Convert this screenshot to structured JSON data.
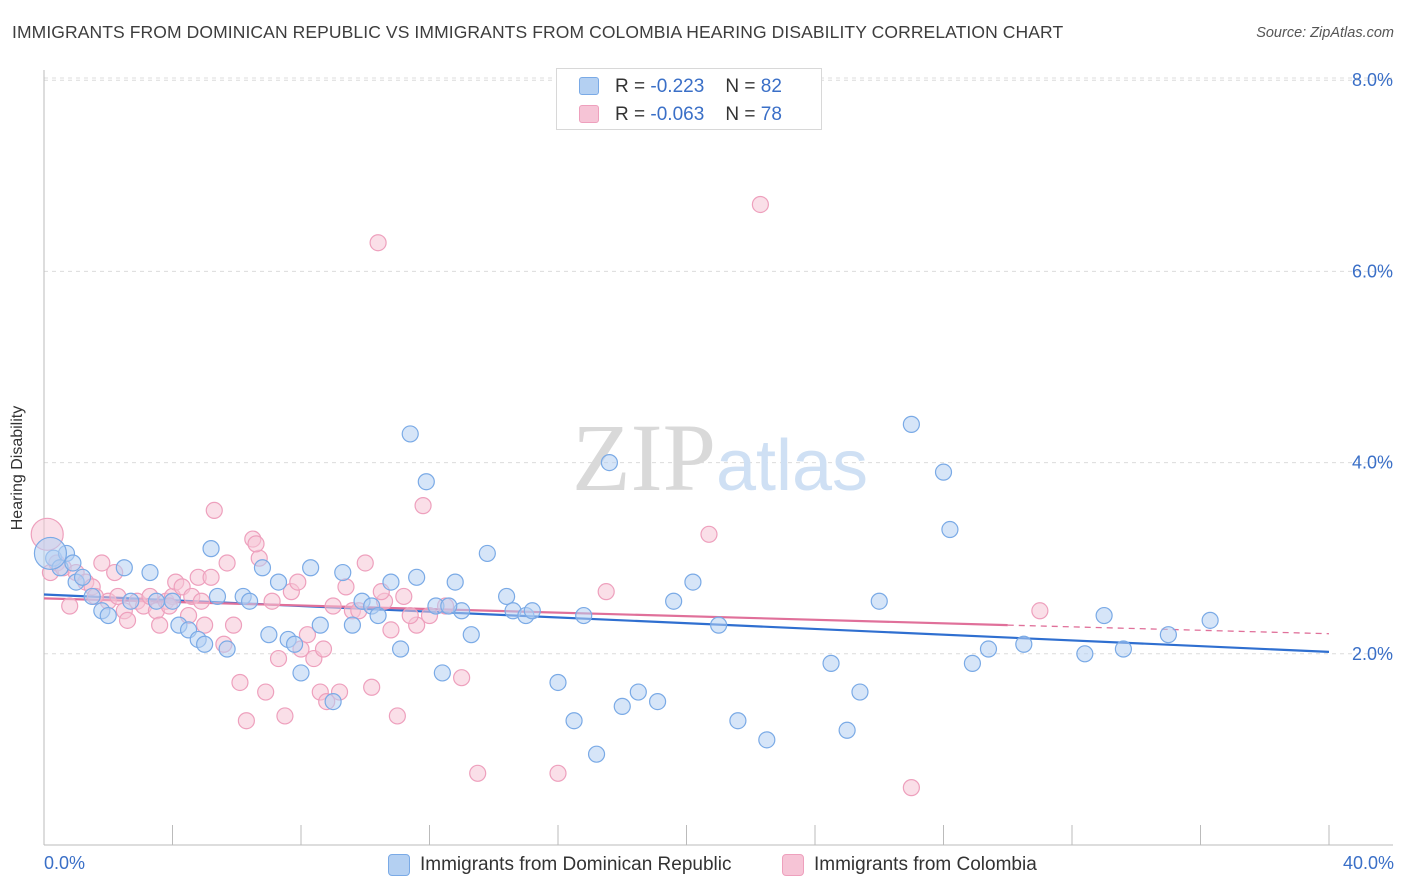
{
  "chart_data": {
    "type": "scatter",
    "title": "IMMIGRANTS FROM DOMINICAN REPUBLIC VS IMMIGRANTS FROM COLOMBIA HEARING DISABILITY CORRELATION CHART",
    "source": "Source: ZipAtlas.com",
    "xlabel": "",
    "ylabel": "Hearing Disability",
    "xlim": [
      0,
      40
    ],
    "ylim": [
      0,
      8.2
    ],
    "x_tick_labels": {
      "left": "0.0%",
      "right": "40.0%"
    },
    "y_ticks": [
      {
        "value": 2,
        "label": "2.0%"
      },
      {
        "value": 4,
        "label": "4.0%"
      },
      {
        "value": 6,
        "label": "6.0%"
      },
      {
        "value": 8,
        "label": "8.0%"
      }
    ],
    "grid": true,
    "legend_position": "top-center",
    "watermark": "ZIPatlas",
    "series": [
      {
        "name": "Immigrants from Dominican Republic",
        "color": "#7aaae6",
        "fill": "#b4d0f2",
        "line_color": "#2f6fd0",
        "r_label": "R =",
        "r_value": "-0.223",
        "n_label": "N =",
        "n_value": "82",
        "trend": {
          "x0": 0,
          "y0": 2.62,
          "x1": 40,
          "y1": 2.02
        },
        "points": [
          [
            0.3,
            3.0
          ],
          [
            0.5,
            2.9
          ],
          [
            0.7,
            3.05
          ],
          [
            0.9,
            2.95
          ],
          [
            1.0,
            2.75
          ],
          [
            1.2,
            2.8
          ],
          [
            1.5,
            2.6
          ],
          [
            1.8,
            2.45
          ],
          [
            2.0,
            2.4
          ],
          [
            2.5,
            2.9
          ],
          [
            2.7,
            2.55
          ],
          [
            3.3,
            2.85
          ],
          [
            3.5,
            2.55
          ],
          [
            4.0,
            2.55
          ],
          [
            4.2,
            2.3
          ],
          [
            4.5,
            2.25
          ],
          [
            4.8,
            2.15
          ],
          [
            5.0,
            2.1
          ],
          [
            5.2,
            3.1
          ],
          [
            5.4,
            2.6
          ],
          [
            5.7,
            2.05
          ],
          [
            6.2,
            2.6
          ],
          [
            6.4,
            2.55
          ],
          [
            6.8,
            2.9
          ],
          [
            7.0,
            2.2
          ],
          [
            7.3,
            2.75
          ],
          [
            7.6,
            2.15
          ],
          [
            7.8,
            2.1
          ],
          [
            8.0,
            1.8
          ],
          [
            8.3,
            2.9
          ],
          [
            8.6,
            2.3
          ],
          [
            9.0,
            1.5
          ],
          [
            9.3,
            2.85
          ],
          [
            9.6,
            2.3
          ],
          [
            9.9,
            2.55
          ],
          [
            10.2,
            2.5
          ],
          [
            10.4,
            2.4
          ],
          [
            10.8,
            2.75
          ],
          [
            11.1,
            2.05
          ],
          [
            11.4,
            4.3
          ],
          [
            11.6,
            2.8
          ],
          [
            11.9,
            3.8
          ],
          [
            12.2,
            2.5
          ],
          [
            12.4,
            1.8
          ],
          [
            12.8,
            2.75
          ],
          [
            13.0,
            2.45
          ],
          [
            13.3,
            2.2
          ],
          [
            13.8,
            3.05
          ],
          [
            14.4,
            2.6
          ],
          [
            14.6,
            2.45
          ],
          [
            15.0,
            2.4
          ],
          [
            15.2,
            2.45
          ],
          [
            16.0,
            1.7
          ],
          [
            16.5,
            1.3
          ],
          [
            16.8,
            2.4
          ],
          [
            17.2,
            0.95
          ],
          [
            17.6,
            4.0
          ],
          [
            18.0,
            1.45
          ],
          [
            18.5,
            1.6
          ],
          [
            19.1,
            1.5
          ],
          [
            19.6,
            2.55
          ],
          [
            20.2,
            2.75
          ],
          [
            21.0,
            2.3
          ],
          [
            21.6,
            1.3
          ],
          [
            22.5,
            1.1
          ],
          [
            24.5,
            1.9
          ],
          [
            25.0,
            1.2
          ],
          [
            25.4,
            1.6
          ],
          [
            26.0,
            2.55
          ],
          [
            27.0,
            4.4
          ],
          [
            28.0,
            3.9
          ],
          [
            28.2,
            3.3
          ],
          [
            28.9,
            1.9
          ],
          [
            29.4,
            2.05
          ],
          [
            30.5,
            2.1
          ],
          [
            32.4,
            2.0
          ],
          [
            33.0,
            2.4
          ],
          [
            33.6,
            2.05
          ],
          [
            35.0,
            2.2
          ],
          [
            36.3,
            2.35
          ],
          [
            0.2,
            3.05
          ],
          [
            12.6,
            2.5
          ]
        ]
      },
      {
        "name": "Immigrants from Colombia",
        "color": "#eea0bd",
        "fill": "#f6c4d6",
        "line_color": "#e0709a",
        "r_label": "R =",
        "r_value": "-0.063",
        "n_label": "N =",
        "n_value": "78",
        "trend": {
          "x0": 0,
          "y0": 2.58,
          "x1": 30,
          "y1": 2.3
        },
        "trend_dashed_to": {
          "x": 40,
          "y": 2.21
        },
        "points": [
          [
            0.2,
            2.85
          ],
          [
            0.4,
            2.95
          ],
          [
            0.6,
            2.9
          ],
          [
            0.8,
            2.5
          ],
          [
            1.0,
            2.85
          ],
          [
            1.3,
            2.75
          ],
          [
            1.5,
            2.7
          ],
          [
            1.8,
            2.95
          ],
          [
            2.0,
            2.55
          ],
          [
            2.3,
            2.6
          ],
          [
            2.5,
            2.45
          ],
          [
            2.6,
            2.35
          ],
          [
            2.9,
            2.55
          ],
          [
            3.1,
            2.5
          ],
          [
            3.3,
            2.6
          ],
          [
            3.5,
            2.45
          ],
          [
            3.6,
            2.3
          ],
          [
            3.8,
            2.55
          ],
          [
            4.0,
            2.6
          ],
          [
            4.1,
            2.75
          ],
          [
            4.3,
            2.7
          ],
          [
            4.5,
            2.4
          ],
          [
            4.6,
            2.6
          ],
          [
            4.8,
            2.8
          ],
          [
            4.9,
            2.55
          ],
          [
            5.0,
            2.3
          ],
          [
            5.2,
            2.8
          ],
          [
            5.3,
            3.5
          ],
          [
            5.6,
            2.1
          ],
          [
            5.9,
            2.3
          ],
          [
            6.1,
            1.7
          ],
          [
            6.3,
            1.3
          ],
          [
            6.5,
            3.2
          ],
          [
            6.7,
            3.0
          ],
          [
            6.9,
            1.6
          ],
          [
            7.1,
            2.55
          ],
          [
            7.3,
            1.95
          ],
          [
            7.5,
            1.35
          ],
          [
            7.7,
            2.65
          ],
          [
            8.0,
            2.05
          ],
          [
            8.2,
            2.2
          ],
          [
            8.4,
            1.95
          ],
          [
            8.6,
            1.6
          ],
          [
            8.8,
            1.5
          ],
          [
            9.0,
            2.5
          ],
          [
            9.2,
            1.6
          ],
          [
            9.4,
            2.7
          ],
          [
            9.6,
            2.45
          ],
          [
            9.8,
            2.45
          ],
          [
            10.0,
            2.95
          ],
          [
            10.2,
            1.65
          ],
          [
            10.4,
            6.3
          ],
          [
            10.6,
            2.55
          ],
          [
            10.8,
            2.25
          ],
          [
            11.0,
            1.35
          ],
          [
            11.2,
            2.6
          ],
          [
            11.6,
            2.3
          ],
          [
            11.8,
            3.55
          ],
          [
            12.0,
            2.4
          ],
          [
            13.0,
            1.75
          ],
          [
            13.5,
            0.75
          ],
          [
            16.0,
            0.75
          ],
          [
            17.5,
            2.65
          ],
          [
            20.7,
            3.25
          ],
          [
            22.3,
            6.7
          ],
          [
            27.0,
            0.6
          ],
          [
            31.0,
            2.45
          ],
          [
            0.1,
            3.25
          ],
          [
            1.6,
            2.6
          ],
          [
            2.2,
            2.85
          ],
          [
            3.9,
            2.5
          ],
          [
            5.7,
            2.95
          ],
          [
            6.6,
            3.15
          ],
          [
            7.9,
            2.75
          ],
          [
            8.7,
            2.05
          ],
          [
            10.5,
            2.65
          ],
          [
            11.4,
            2.4
          ],
          [
            12.5,
            2.5
          ]
        ]
      }
    ]
  }
}
